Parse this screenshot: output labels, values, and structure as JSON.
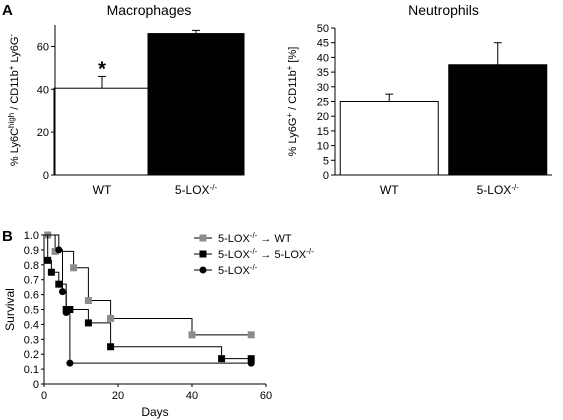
{
  "figure": {
    "panel_a_letter": "A",
    "panel_b_letter": "B"
  },
  "chart_data": [
    {
      "type": "bar",
      "title": "Macrophages",
      "ylabel": "% Ly6C high / CD11b+ Ly6G-",
      "ylabel_parts": [
        "% Ly6C",
        "high",
        " / CD11b",
        "+",
        " Ly6G",
        "-"
      ],
      "categories": [
        "WT",
        "5-LOX"
      ],
      "category_sup": [
        "",
        "-/-"
      ],
      "values": [
        40.5,
        66
      ],
      "errors": [
        5.5,
        1.5
      ],
      "fills": [
        "#ffffff",
        "#000000"
      ],
      "ylim": [
        0,
        70
      ],
      "yticks": [
        0,
        20,
        40,
        60
      ],
      "annotations": [
        {
          "category": 0,
          "text": "*"
        }
      ]
    },
    {
      "type": "bar",
      "title": "Neutrophils",
      "ylabel": "% Ly6G+ / CD11b+ [%]",
      "ylabel_parts": [
        "% Ly6G",
        "+",
        " / CD11b",
        "+",
        " [%]",
        ""
      ],
      "categories": [
        "WT",
        "5-LOX"
      ],
      "category_sup": [
        "",
        "-/-"
      ],
      "values": [
        25,
        37.5
      ],
      "errors": [
        2.5,
        7.5
      ],
      "fills": [
        "#ffffff",
        "#000000"
      ],
      "ylim": [
        0,
        50
      ],
      "yticks": [
        0,
        5,
        10,
        15,
        20,
        25,
        30,
        35,
        40,
        45,
        50
      ]
    },
    {
      "type": "line",
      "subtype": "step",
      "xlabel": "Days",
      "ylabel": "Survival",
      "xlim": [
        0,
        60
      ],
      "ylim": [
        0,
        1.0
      ],
      "xticks": [
        0,
        20,
        40,
        60
      ],
      "yticks": [
        0,
        0.1,
        0.2,
        0.3,
        0.4,
        0.5,
        0.6,
        0.7,
        0.8,
        0.9,
        1.0
      ],
      "ytick_labels": [
        "0",
        "0.1",
        "0.2",
        "0.3",
        "0.4",
        "0.5",
        "0.6",
        "0.7",
        "0.8",
        "0.9",
        "1.0"
      ],
      "legend_position": "top-right",
      "series": [
        {
          "name": "5-LOX-/- → WT",
          "name_parts": [
            "5-LOX",
            "-/-",
            " → WT",
            "",
            ""
          ],
          "color": "#8c8c8c",
          "marker": "square",
          "x": [
            0,
            1,
            3,
            8,
            12,
            18,
            40,
            56
          ],
          "y": [
            1.0,
            1.0,
            0.89,
            0.78,
            0.56,
            0.44,
            0.33,
            0.33
          ]
        },
        {
          "name": "5-LOX-/- → 5-LOX-/-",
          "name_parts": [
            "5-LOX",
            "-/-",
            " → 5-LOX",
            "-/-",
            ""
          ],
          "color": "#000000",
          "marker": "square",
          "x": [
            0,
            1,
            2,
            4,
            6,
            7,
            12,
            18,
            48,
            56
          ],
          "y": [
            1.0,
            0.83,
            0.75,
            0.67,
            0.5,
            0.5,
            0.41,
            0.25,
            0.17,
            0.17
          ]
        },
        {
          "name": "5-LOX-/-",
          "name_parts": [
            "5-LOX",
            "-/-",
            "",
            "",
            ""
          ],
          "color": "#000000",
          "marker": "circle",
          "x": [
            0,
            4,
            5,
            6,
            7,
            56
          ],
          "y": [
            1.0,
            0.9,
            0.62,
            0.48,
            0.14,
            0.14
          ]
        }
      ]
    }
  ]
}
